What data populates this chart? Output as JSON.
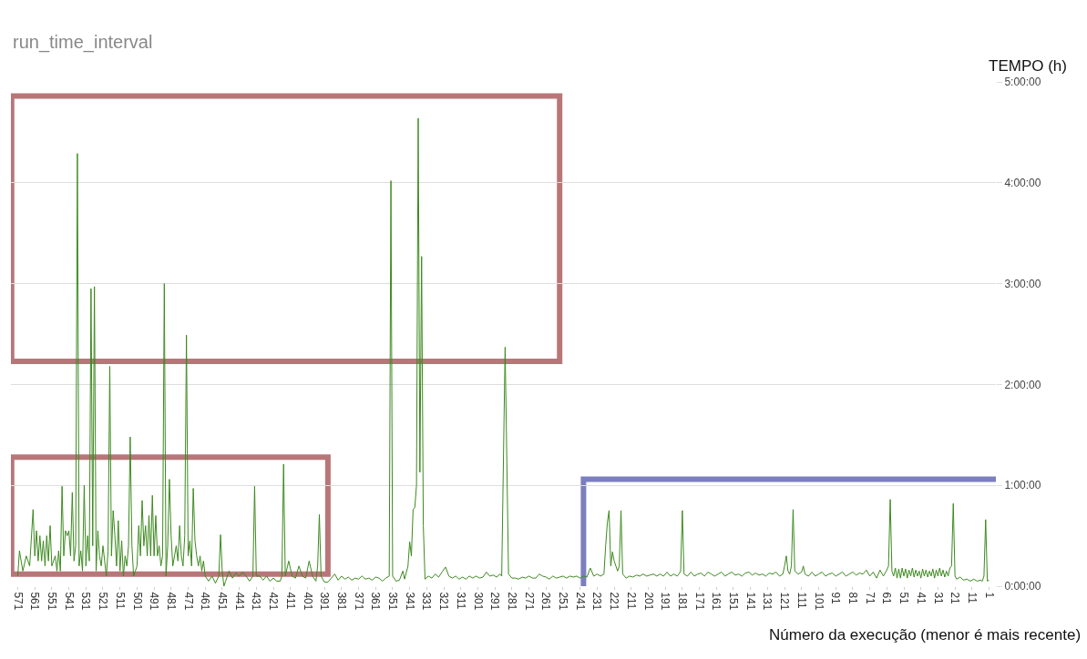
{
  "chart_data": {
    "type": "line",
    "title": "run_time_interval",
    "xlabel": "Número da execução (menor é mais recente)",
    "ylabel": "TEMPO (h)",
    "x": [
      571,
      570,
      568,
      566,
      564,
      562,
      561,
      560,
      559,
      558,
      557,
      556,
      555,
      554,
      553,
      552,
      551,
      549,
      548,
      547,
      546,
      545,
      544,
      543,
      542,
      541,
      540,
      539,
      538,
      537,
      536,
      535,
      534,
      533,
      532,
      531,
      530,
      529,
      528,
      527,
      526,
      525,
      524,
      523,
      522,
      521,
      519,
      518,
      517,
      516,
      515,
      514,
      513,
      512,
      511,
      510,
      509,
      508,
      507,
      506,
      505,
      504,
      503,
      502,
      501,
      500,
      499,
      498,
      497,
      496,
      495,
      494,
      493,
      492,
      491,
      490,
      489,
      488,
      487,
      486,
      485,
      484,
      483,
      482,
      481,
      480,
      479,
      478,
      477,
      476,
      475,
      474,
      473,
      472,
      471,
      470,
      469,
      468,
      467,
      466,
      465,
      464,
      463,
      462,
      461,
      459,
      457,
      455,
      453,
      452,
      451,
      450,
      449,
      447,
      445,
      443,
      441,
      439,
      437,
      435,
      433,
      432,
      431,
      429,
      427,
      425,
      423,
      421,
      419,
      417,
      416,
      415,
      414,
      412,
      410,
      408,
      406,
      404,
      402,
      400,
      398,
      396,
      395,
      394,
      393,
      391,
      389,
      387,
      385,
      383,
      381,
      379,
      377,
      375,
      373,
      371,
      369,
      367,
      365,
      363,
      361,
      359,
      357,
      355,
      353,
      352,
      351,
      349,
      347,
      345,
      344,
      342,
      341,
      340,
      339,
      338,
      337,
      336,
      335,
      334,
      333,
      332,
      330,
      328,
      326,
      324,
      322,
      320,
      318,
      316,
      314,
      312,
      310,
      308,
      306,
      304,
      302,
      300,
      298,
      296,
      294,
      292,
      290,
      288,
      287,
      285,
      283,
      281,
      279,
      277,
      275,
      273,
      271,
      269,
      267,
      265,
      263,
      261,
      259,
      257,
      255,
      253,
      251,
      249,
      247,
      245,
      243,
      241,
      239,
      237,
      235,
      233,
      231,
      229,
      227,
      226,
      225,
      224,
      223,
      222,
      221,
      219,
      218,
      217,
      216,
      214,
      212,
      210,
      208,
      206,
      204,
      202,
      200,
      198,
      196,
      194,
      192,
      190,
      188,
      186,
      184,
      183,
      182,
      181,
      180,
      178,
      176,
      174,
      172,
      170,
      168,
      166,
      164,
      162,
      160,
      158,
      156,
      154,
      152,
      150,
      148,
      146,
      144,
      142,
      140,
      138,
      136,
      134,
      132,
      130,
      128,
      126,
      124,
      122,
      121,
      120,
      119,
      118,
      117,
      116,
      115,
      113,
      111,
      110,
      109,
      107,
      105,
      103,
      101,
      99,
      97,
      95,
      93,
      91,
      89,
      87,
      85,
      83,
      81,
      79,
      77,
      75,
      73,
      71,
      69,
      67,
      65,
      63,
      61,
      60,
      59,
      58,
      57,
      56,
      55,
      54,
      53,
      52,
      51,
      50,
      49,
      48,
      47,
      46,
      45,
      44,
      43,
      42,
      41,
      40,
      39,
      38,
      37,
      36,
      35,
      34,
      33,
      32,
      31,
      30,
      29,
      28,
      27,
      26,
      25,
      24,
      23,
      22,
      21,
      20,
      18,
      16,
      14,
      12,
      10,
      8,
      6,
      5,
      4,
      3,
      2,
      1
    ],
    "series": [
      {
        "color": "#3d8a1f",
        "values": [
          0.1,
          0.35,
          0.15,
          0.3,
          0.2,
          0.76,
          0.3,
          0.55,
          0.25,
          0.5,
          0.25,
          0.45,
          0.2,
          0.5,
          0.25,
          0.6,
          0.2,
          0.3,
          0.15,
          0.35,
          0.15,
          0.99,
          0.3,
          0.55,
          0.5,
          0.55,
          0.3,
          0.93,
          0.25,
          0.4,
          4.29,
          0.2,
          0.35,
          0.15,
          1.0,
          0.2,
          0.5,
          0.25,
          2.95,
          0.4,
          2.97,
          0.15,
          0.55,
          0.3,
          0.2,
          0.4,
          0.1,
          0.35,
          2.18,
          0.3,
          0.75,
          0.5,
          0.2,
          0.65,
          0.15,
          0.45,
          0.1,
          0.3,
          0.2,
          0.4,
          1.48,
          0.4,
          0.1,
          0.15,
          0.2,
          0.6,
          0.3,
          0.85,
          0.4,
          0.6,
          0.3,
          0.7,
          0.3,
          0.9,
          0.3,
          0.7,
          0.3,
          0.4,
          0.2,
          0.3,
          3.0,
          0.1,
          0.4,
          1.06,
          0.5,
          0.2,
          0.3,
          0.4,
          0.25,
          0.6,
          0.3,
          0.2,
          0.5,
          2.49,
          0.3,
          0.45,
          0.2,
          0.97,
          0.45,
          0.3,
          0.2,
          0.3,
          0.15,
          0.25,
          0.1,
          0.05,
          0.1,
          0.03,
          0.1,
          0.51,
          0.15,
          0.0,
          0.05,
          0.15,
          0.08,
          0.13,
          0.1,
          0.14,
          0.1,
          0.05,
          0.1,
          0.99,
          0.1,
          0.1,
          0.06,
          0.1,
          0.05,
          0.08,
          0.05,
          0.05,
          0.1,
          1.21,
          0.1,
          0.25,
          0.1,
          0.08,
          0.2,
          0.1,
          0.08,
          0.25,
          0.1,
          0.05,
          0.2,
          0.71,
          0.1,
          0.04,
          0.04,
          0.08,
          0.12,
          0.06,
          0.1,
          0.07,
          0.09,
          0.06,
          0.08,
          0.07,
          0.1,
          0.07,
          0.08,
          0.06,
          0.09,
          0.08,
          0.05,
          0.08,
          0.1,
          4.02,
          0.1,
          0.05,
          0.06,
          0.15,
          0.07,
          0.2,
          0.44,
          0.3,
          0.76,
          0.78,
          1.0,
          4.64,
          1.13,
          3.27,
          0.6,
          0.07,
          0.1,
          0.08,
          0.12,
          0.09,
          0.14,
          0.19,
          0.1,
          0.08,
          0.1,
          0.07,
          0.09,
          0.07,
          0.1,
          0.08,
          0.1,
          0.08,
          0.09,
          0.14,
          0.1,
          0.11,
          0.09,
          0.12,
          0.1,
          2.37,
          0.12,
          0.08,
          0.08,
          0.07,
          0.09,
          0.08,
          0.1,
          0.08,
          0.08,
          0.12,
          0.1,
          0.09,
          0.07,
          0.1,
          0.08,
          0.09,
          0.1,
          0.08,
          0.1,
          0.09,
          0.1,
          0.08,
          0.1,
          0.09,
          0.18,
          0.1,
          0.12,
          0.1,
          0.12,
          0.4,
          0.63,
          0.75,
          0.2,
          0.34,
          0.25,
          0.15,
          0.2,
          0.75,
          0.12,
          0.08,
          0.1,
          0.09,
          0.11,
          0.1,
          0.12,
          0.1,
          0.11,
          0.12,
          0.1,
          0.12,
          0.1,
          0.14,
          0.1,
          0.12,
          0.1,
          0.12,
          0.15,
          0.75,
          0.12,
          0.1,
          0.14,
          0.1,
          0.12,
          0.13,
          0.1,
          0.14,
          0.12,
          0.1,
          0.12,
          0.14,
          0.1,
          0.12,
          0.14,
          0.11,
          0.12,
          0.1,
          0.13,
          0.14,
          0.11,
          0.13,
          0.11,
          0.12,
          0.1,
          0.13,
          0.12,
          0.14,
          0.1,
          0.12,
          0.2,
          0.3,
          0.15,
          0.12,
          0.2,
          0.76,
          0.15,
          0.12,
          0.14,
          0.2,
          0.12,
          0.1,
          0.14,
          0.1,
          0.12,
          0.14,
          0.1,
          0.12,
          0.13,
          0.1,
          0.12,
          0.14,
          0.1,
          0.12,
          0.14,
          0.11,
          0.13,
          0.12,
          0.16,
          0.1,
          0.14,
          0.08,
          0.16,
          0.1,
          0.16,
          0.2,
          0.86,
          0.15,
          0.1,
          0.18,
          0.08,
          0.17,
          0.08,
          0.18,
          0.1,
          0.17,
          0.08,
          0.16,
          0.1,
          0.18,
          0.09,
          0.16,
          0.1,
          0.15,
          0.08,
          0.17,
          0.1,
          0.16,
          0.09,
          0.15,
          0.1,
          0.17,
          0.08,
          0.16,
          0.1,
          0.18,
          0.1,
          0.16,
          0.09,
          0.15,
          0.1,
          0.18,
          0.2,
          0.82,
          0.1,
          0.07,
          0.09,
          0.06,
          0.07,
          0.05,
          0.07,
          0.05,
          0.06,
          0.05,
          0.1,
          0.66,
          0.05,
          0.06
        ]
      }
    ],
    "xlim": [
      575,
      -3
    ],
    "xticks": [
      571,
      561,
      551,
      541,
      531,
      521,
      511,
      501,
      491,
      481,
      471,
      461,
      451,
      441,
      431,
      421,
      411,
      401,
      391,
      381,
      371,
      361,
      351,
      341,
      331,
      321,
      311,
      301,
      291,
      281,
      271,
      261,
      251,
      241,
      231,
      221,
      211,
      201,
      191,
      181,
      171,
      161,
      151,
      141,
      131,
      121,
      111,
      101,
      91,
      81,
      71,
      61,
      51,
      41,
      31,
      21,
      11,
      1
    ],
    "ylim": [
      0,
      5
    ],
    "yticks": [
      {
        "value": 0,
        "label": "0:00:00"
      },
      {
        "value": 1,
        "label": "1:00:00"
      },
      {
        "value": 2,
        "label": "2:00:00"
      },
      {
        "value": 3,
        "label": "3:00:00"
      },
      {
        "value": 4,
        "label": "4:00:00"
      },
      {
        "value": 5,
        "label": "5:00:00"
      }
    ],
    "grid": "y",
    "marker": "none",
    "line_style": "solid"
  }
}
